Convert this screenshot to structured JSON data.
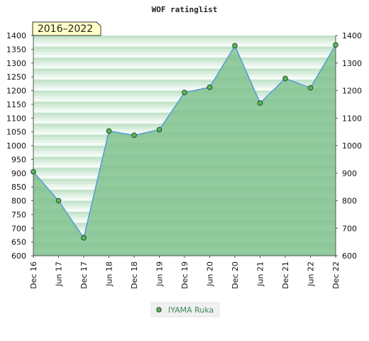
{
  "chart_data": {
    "type": "area",
    "title": "WOF ratinglist",
    "period_badge": "2016–2022",
    "categories": [
      "Dec 16",
      "Jun 17",
      "Dec 17",
      "Jun 18",
      "Dec 18",
      "Jun 19",
      "Dec 19",
      "Jun 20",
      "Dec 20",
      "Jun 21",
      "Dec 21",
      "Jun 22",
      "Dec 22"
    ],
    "series": [
      {
        "name": "IYAMA Ruka",
        "values": [
          905,
          800,
          665,
          1053,
          1038,
          1058,
          1193,
          1212,
          1363,
          1155,
          1244,
          1210,
          1366
        ]
      }
    ],
    "y_left": {
      "min": 600,
      "max": 1400,
      "ticks": [
        600,
        650,
        700,
        750,
        800,
        850,
        900,
        950,
        1000,
        1050,
        1100,
        1150,
        1200,
        1250,
        1300,
        1350,
        1400
      ]
    },
    "y_right": {
      "min": 600,
      "max": 1400,
      "ticks": [
        600,
        700,
        800,
        900,
        1000,
        1100,
        1200,
        1300,
        1400
      ]
    },
    "grid": true,
    "legend_position": "bottom-center",
    "colors": {
      "line": "#4f97d8",
      "marker_fill": "#5cb85c",
      "marker_stroke": "#1e4a1e",
      "area_top": "#d9f0df",
      "area_fill": "#7cc08c",
      "badge_fill": "#ffffc8",
      "legend_text": "#3a8a5a"
    }
  }
}
